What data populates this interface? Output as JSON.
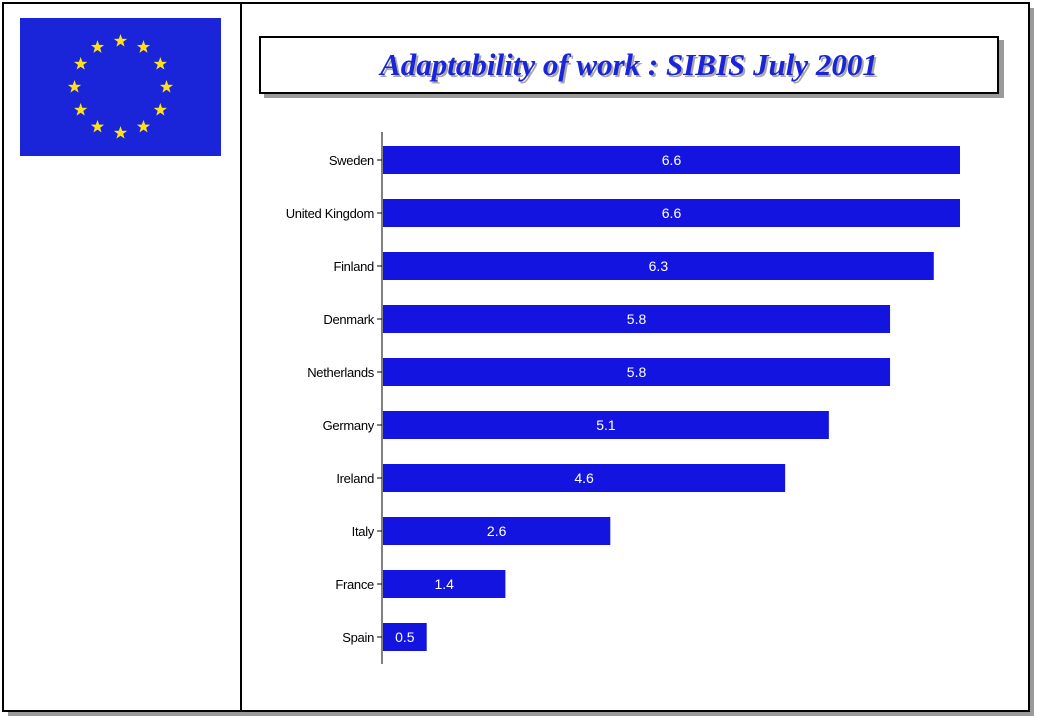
{
  "title": "Adaptability of work : SIBIS July 2001",
  "colors": {
    "flag": "#1a24d8",
    "stars": "#ffe11a",
    "bars": "#1414e0",
    "title": "#1a24d8",
    "bar_label": "#ffffff"
  },
  "logo": {
    "icon": "eu-flag-icon",
    "star_count": 12
  },
  "chart_data": {
    "type": "bar",
    "orientation": "horizontal",
    "categories": [
      "Sweden",
      "United Kingdom",
      "Finland",
      "Denmark",
      "Netherlands",
      "Germany",
      "Ireland",
      "Italy",
      "France",
      "Spain"
    ],
    "values": [
      6.6,
      6.6,
      6.3,
      5.8,
      5.8,
      5.1,
      4.6,
      2.6,
      1.4,
      0.5
    ],
    "value_labels": [
      "6.6",
      "6.6",
      "6.3",
      "5.8",
      "5.8",
      "5.1",
      "4.6",
      "2.6",
      "1.4",
      "0.5"
    ],
    "xlim": [
      0,
      6.6
    ],
    "grid": false,
    "legend": "none",
    "data_labels": "inside-bar"
  }
}
